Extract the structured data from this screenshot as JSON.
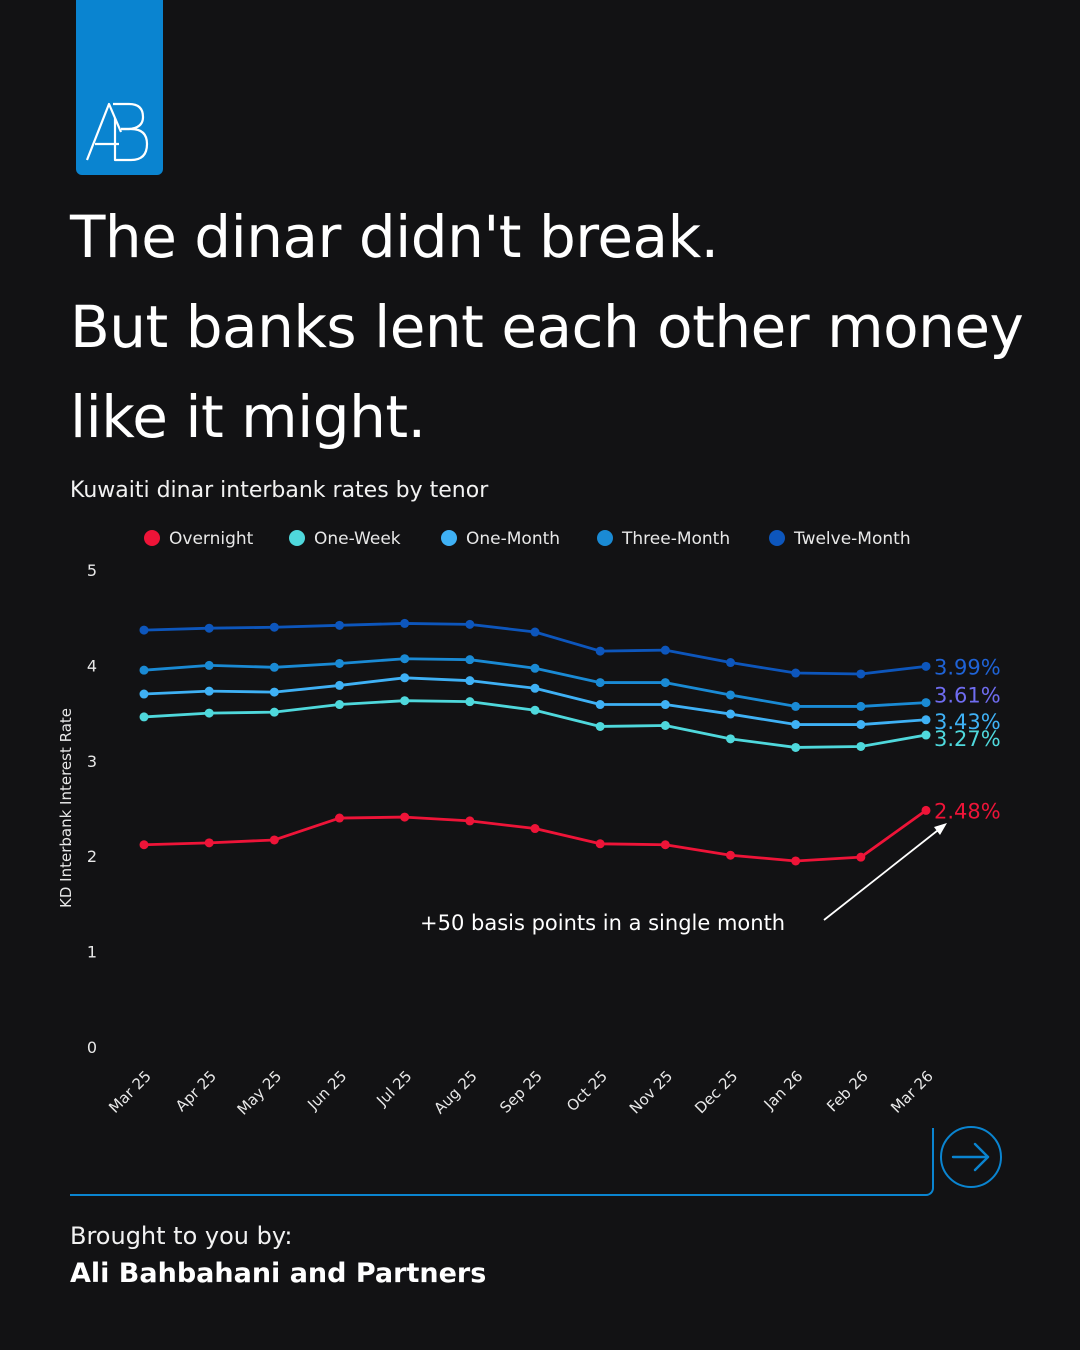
{
  "brand": {
    "logo_text": "AB",
    "accent_color": "#0a84d0",
    "credit_label": "Brought to you by:",
    "credit_name": "Ali Bahbahani and Partners"
  },
  "headline": {
    "line1": "The dinar didn't break.",
    "line2": "But banks lent each other money",
    "line3": "like it might."
  },
  "navigation": {
    "next_icon": "arrow-right-icon"
  },
  "chart_data": {
    "type": "line",
    "title": "Kuwaiti dinar interbank rates by tenor",
    "xlabel": "",
    "ylabel": "KD Interbank Interest Rate",
    "ylim": [
      0,
      5
    ],
    "yticks": [
      "0",
      "1",
      "2",
      "3",
      "4",
      "5"
    ],
    "grid": false,
    "legend_position": "top",
    "categories": [
      "Mar 25",
      "Apr 25",
      "May 25",
      "Jun 25",
      "Jul 25",
      "Aug 25",
      "Sep 25",
      "Oct 25",
      "Nov 25",
      "Dec 25",
      "Jan 26",
      "Feb 26",
      "Mar 26"
    ],
    "series": [
      {
        "name": "Overnight",
        "color": "#ee1438",
        "end_label": "2.48%",
        "end_color": "#ee1438",
        "values": [
          2.12,
          2.14,
          2.17,
          2.4,
          2.41,
          2.37,
          2.29,
          2.13,
          2.12,
          2.01,
          1.95,
          1.99,
          2.48
        ]
      },
      {
        "name": "One-Week",
        "color": "#4fd8dc",
        "end_label": "3.27%",
        "end_color": "#4fd8dc",
        "values": [
          3.46,
          3.5,
          3.51,
          3.59,
          3.63,
          3.62,
          3.53,
          3.36,
          3.37,
          3.23,
          3.14,
          3.15,
          3.27
        ]
      },
      {
        "name": "One-Month",
        "color": "#3fb1f5",
        "end_label": "3.43%",
        "end_color": "#3fb1f5",
        "values": [
          3.7,
          3.73,
          3.72,
          3.79,
          3.87,
          3.84,
          3.76,
          3.59,
          3.59,
          3.49,
          3.38,
          3.38,
          3.43
        ]
      },
      {
        "name": "Three-Month",
        "color": "#1a8ad4",
        "end_label": "3.61%",
        "end_color": "#6f6cf0",
        "values": [
          3.95,
          4.0,
          3.98,
          4.02,
          4.07,
          4.06,
          3.97,
          3.82,
          3.82,
          3.69,
          3.57,
          3.57,
          3.61
        ]
      },
      {
        "name": "Twelve-Month",
        "color": "#0d56bc",
        "end_label": "3.99%",
        "end_color": "#1f63d6",
        "values": [
          4.37,
          4.39,
          4.4,
          4.42,
          4.44,
          4.43,
          4.35,
          4.15,
          4.16,
          4.03,
          3.92,
          3.91,
          3.99
        ]
      }
    ],
    "annotation": {
      "text": "+50 basis points in a single month",
      "points_to": "Mar 26"
    }
  }
}
